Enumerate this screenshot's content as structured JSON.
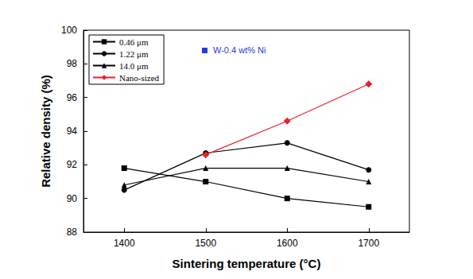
{
  "chart_data": {
    "type": "line",
    "x": [
      1400,
      1500,
      1600,
      1700
    ],
    "xlim": [
      1350,
      1750
    ],
    "xticks": [
      1400,
      1500,
      1600,
      1700
    ],
    "ylim": [
      88,
      100
    ],
    "yticks": [
      88,
      90,
      92,
      94,
      96,
      98,
      100
    ],
    "x_label": "Sintering temperature (°C)",
    "y_label": "Relative density (%)",
    "grid": false,
    "legend": "upper left",
    "annotations": [
      {
        "text": "W-0.4 wt% Ni",
        "color": "#1f3fd0"
      }
    ],
    "series": [
      {
        "name": "0.46 μm",
        "color": "#000000",
        "marker": "square",
        "values": [
          91.8,
          91.0,
          90.0,
          89.5
        ]
      },
      {
        "name": "1.22 μm",
        "color": "#000000",
        "marker": "circle",
        "values": [
          90.5,
          92.7,
          93.3,
          91.7
        ]
      },
      {
        "name": "14.0 μm",
        "color": "#000000",
        "marker": "triangle",
        "values": [
          90.8,
          91.8,
          91.8,
          91.0
        ]
      },
      {
        "name": "Nano-sized",
        "color": "#e8202a",
        "marker": "diamond",
        "values": [
          null,
          92.6,
          94.6,
          96.8
        ]
      }
    ]
  }
}
